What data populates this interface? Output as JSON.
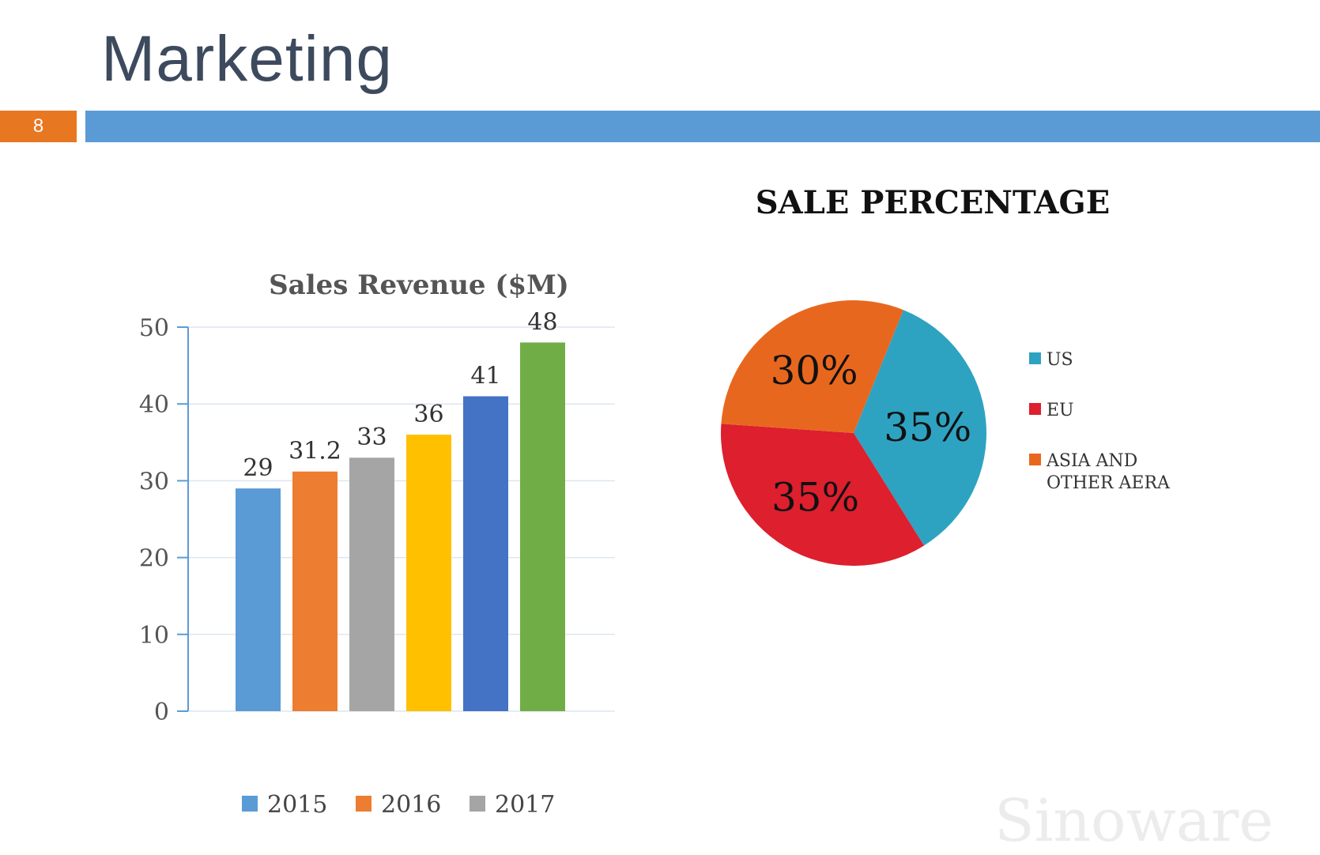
{
  "slide": {
    "title": "Marketing",
    "page_number": "8",
    "watermark": "Sinoware",
    "colors": {
      "title": "#3d4a5e",
      "badge": "#e87722",
      "header_bar": "#5b9bd5"
    }
  },
  "chart_data": [
    {
      "type": "bar",
      "title": "Sales Revenue ($M)",
      "xlabel": "",
      "ylabel": "",
      "categories": [
        "",
        "",
        "",
        "",
        "",
        ""
      ],
      "values": [
        29,
        31.2,
        33,
        36,
        41,
        48
      ],
      "data_labels": [
        "29",
        "31.2",
        "33",
        "36",
        "41",
        "48"
      ],
      "bar_colors": [
        "#5b9bd5",
        "#ed7d31",
        "#a5a5a5",
        "#ffc000",
        "#4472c4",
        "#70ad47"
      ],
      "ylim": [
        0,
        50
      ],
      "yticks": [
        0,
        10,
        20,
        30,
        40,
        50
      ],
      "ytick_labels": [
        "0",
        "10",
        "20",
        "30",
        "40",
        "50"
      ],
      "grid": true,
      "legend": {
        "placement": "bottom",
        "entries": [
          {
            "label": "2015",
            "color": "#5b9bd5"
          },
          {
            "label": "2016",
            "color": "#ed7d31"
          },
          {
            "label": "2017",
            "color": "#a5a5a5"
          }
        ]
      }
    },
    {
      "type": "pie",
      "title": "SALE PERCENTAGE",
      "slices": [
        {
          "label": "US",
          "value": 35,
          "display": "35%",
          "color": "#2ea3c1"
        },
        {
          "label": "EU",
          "value": 35,
          "display": "35%",
          "color": "#dd1f2e"
        },
        {
          "label": "ASIA AND OTHER AERA",
          "label_lines": [
            "ASIA AND",
            "OTHER AERA"
          ],
          "value": 30,
          "display": "30%",
          "color": "#e8671e"
        }
      ],
      "legend": {
        "placement": "right"
      }
    }
  ]
}
